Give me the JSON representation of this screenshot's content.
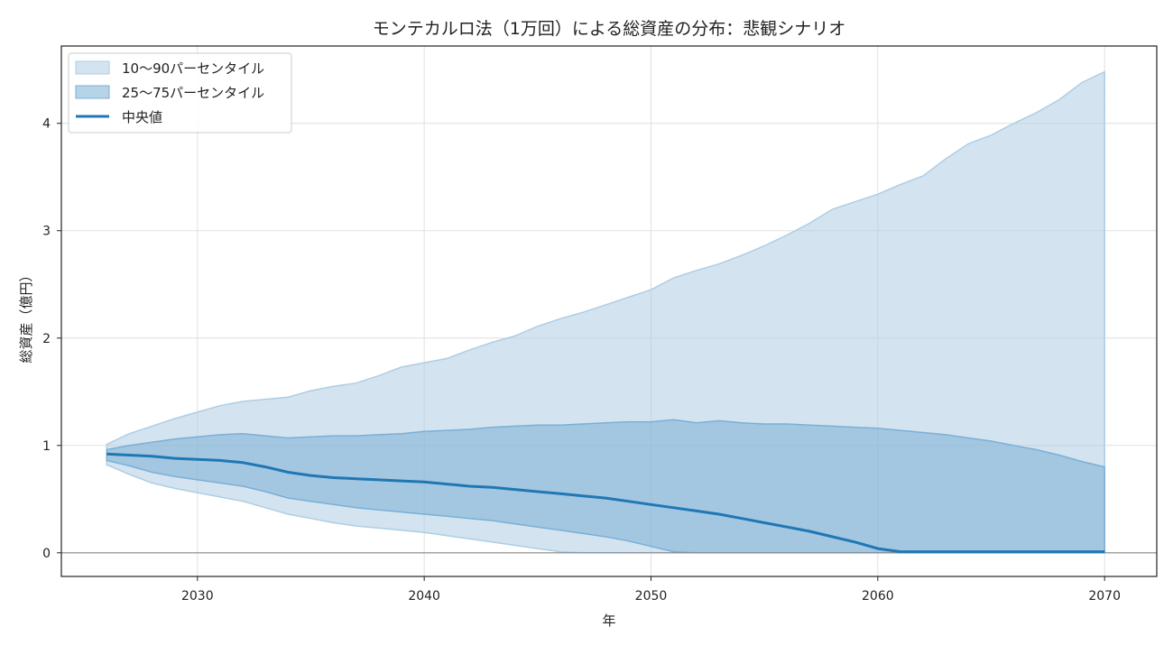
{
  "chart_data": {
    "type": "area",
    "title": "モンテカルロ法（1万回）による総資産の分布：悲観シナリオ",
    "xlabel": "年",
    "ylabel": "総資産（億円）",
    "xlim": [
      2024,
      2072.3
    ],
    "ylim": [
      -0.22,
      4.72
    ],
    "xticks": [
      2030,
      2040,
      2050,
      2060,
      2070
    ],
    "yticks": [
      0,
      1,
      2,
      3,
      4
    ],
    "grid": true,
    "zero_line": true,
    "legend_position": "top-left",
    "colors": {
      "band_outer": "#aecde4",
      "band_inner": "#7bafd6",
      "median": "#1f77b4",
      "zero_line": "#888888",
      "grid": "#e0e0e0"
    },
    "legend": [
      {
        "label": "10〜90パーセンタイル",
        "kind": "band_outer"
      },
      {
        "label": "25〜75パーセンタイル",
        "kind": "band_inner"
      },
      {
        "label": "中央値",
        "kind": "median"
      }
    ],
    "x": [
      2026,
      2027,
      2028,
      2029,
      2030,
      2031,
      2032,
      2033,
      2034,
      2035,
      2036,
      2037,
      2038,
      2039,
      2040,
      2041,
      2042,
      2043,
      2044,
      2045,
      2046,
      2047,
      2048,
      2049,
      2050,
      2051,
      2052,
      2053,
      2054,
      2055,
      2056,
      2057,
      2058,
      2059,
      2060,
      2061,
      2062,
      2063,
      2064,
      2065,
      2066,
      2067,
      2068,
      2069,
      2070
    ],
    "series": [
      {
        "name": "p90",
        "values": [
          1.01,
          1.11,
          1.18,
          1.25,
          1.31,
          1.37,
          1.41,
          1.43,
          1.45,
          1.51,
          1.55,
          1.58,
          1.65,
          1.73,
          1.77,
          1.81,
          1.89,
          1.96,
          2.02,
          2.11,
          2.18,
          2.24,
          2.31,
          2.38,
          2.45,
          2.56,
          2.63,
          2.69,
          2.77,
          2.86,
          2.96,
          3.07,
          3.2,
          3.27,
          3.34,
          3.43,
          3.51,
          3.67,
          3.81,
          3.89,
          4.0,
          4.1,
          4.22,
          4.38,
          4.48
        ]
      },
      {
        "name": "p75",
        "values": [
          0.96,
          1.0,
          1.03,
          1.06,
          1.08,
          1.1,
          1.11,
          1.09,
          1.07,
          1.08,
          1.09,
          1.09,
          1.1,
          1.11,
          1.13,
          1.14,
          1.15,
          1.17,
          1.18,
          1.19,
          1.19,
          1.2,
          1.21,
          1.22,
          1.22,
          1.24,
          1.21,
          1.23,
          1.21,
          1.2,
          1.2,
          1.19,
          1.18,
          1.17,
          1.16,
          1.14,
          1.12,
          1.1,
          1.07,
          1.04,
          1.0,
          0.96,
          0.91,
          0.85,
          0.8
        ]
      },
      {
        "name": "中央値",
        "values": [
          0.92,
          0.91,
          0.9,
          0.88,
          0.87,
          0.86,
          0.84,
          0.8,
          0.75,
          0.72,
          0.7,
          0.69,
          0.68,
          0.67,
          0.66,
          0.64,
          0.62,
          0.61,
          0.59,
          0.57,
          0.55,
          0.53,
          0.51,
          0.48,
          0.45,
          0.42,
          0.39,
          0.36,
          0.32,
          0.28,
          0.24,
          0.2,
          0.15,
          0.1,
          0.04,
          0.01,
          0.01,
          0.01,
          0.01,
          0.01,
          0.01,
          0.01,
          0.01,
          0.01,
          0.01
        ]
      },
      {
        "name": "p25",
        "values": [
          0.86,
          0.81,
          0.75,
          0.71,
          0.68,
          0.65,
          0.62,
          0.57,
          0.51,
          0.48,
          0.45,
          0.42,
          0.4,
          0.38,
          0.36,
          0.34,
          0.32,
          0.3,
          0.27,
          0.24,
          0.21,
          0.18,
          0.15,
          0.11,
          0.06,
          0.01,
          0.0,
          0.0,
          0.0,
          0.0,
          0.0,
          0.0,
          0.0,
          0.0,
          0.0,
          0.0,
          0.0,
          0.0,
          0.0,
          0.0,
          0.0,
          0.0,
          0.0,
          0.0,
          0.0
        ]
      },
      {
        "name": "p10",
        "values": [
          0.82,
          0.73,
          0.65,
          0.6,
          0.56,
          0.52,
          0.48,
          0.42,
          0.36,
          0.32,
          0.28,
          0.25,
          0.23,
          0.21,
          0.19,
          0.16,
          0.13,
          0.1,
          0.07,
          0.04,
          0.01,
          0.0,
          0.0,
          0.0,
          0.0,
          0.0,
          0.0,
          0.0,
          0.0,
          0.0,
          0.0,
          0.0,
          0.0,
          0.0,
          0.0,
          0.0,
          0.0,
          0.0,
          0.0,
          0.0,
          0.0,
          0.0,
          0.0,
          0.0,
          0.0
        ]
      }
    ]
  }
}
